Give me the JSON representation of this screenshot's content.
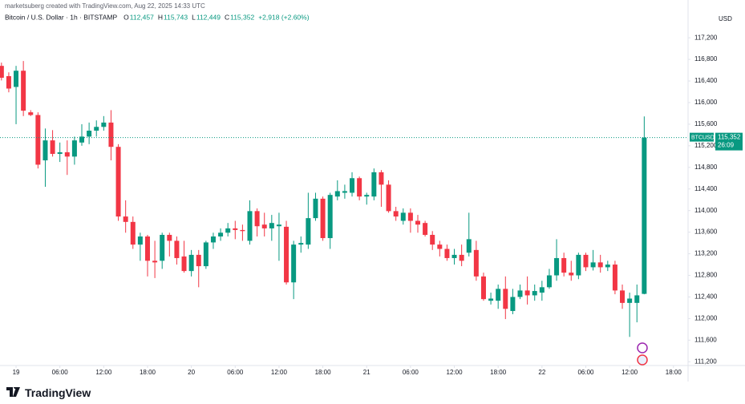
{
  "header": {
    "credit": "marketsuberg created with TradingView.com, Aug 22, 2025 14:33 UTC",
    "symbol": "Bitcoin / U.S. Dollar · 1h · BITSTAMP",
    "ohlc": [
      {
        "label": "O",
        "value": "112,457"
      },
      {
        "label": "H",
        "value": "115,743"
      },
      {
        "label": "L",
        "value": "112,449"
      },
      {
        "label": "C",
        "value": "115,352"
      }
    ],
    "change": "+2,918 (+2.60%)"
  },
  "chart_data": {
    "type": "candlestick",
    "currency": "USD",
    "up_color": "#089981",
    "down_color": "#f23645",
    "grid": false,
    "xlim": [
      -2.2,
      92
    ],
    "ylim": [
      111130,
      117900
    ],
    "xticks": [
      {
        "value": 0,
        "label": "19"
      },
      {
        "value": 6,
        "label": "06:00"
      },
      {
        "value": 12,
        "label": "12:00"
      },
      {
        "value": 18,
        "label": "18:00"
      },
      {
        "value": 24,
        "label": "20"
      },
      {
        "value": 30,
        "label": "06:00"
      },
      {
        "value": 36,
        "label": "12:00"
      },
      {
        "value": 42,
        "label": "18:00"
      },
      {
        "value": 48,
        "label": "21"
      },
      {
        "value": 54,
        "label": "06:00"
      },
      {
        "value": 60,
        "label": "12:00"
      },
      {
        "value": 66,
        "label": "18:00"
      },
      {
        "value": 72,
        "label": "22"
      },
      {
        "value": 78,
        "label": "06:00"
      },
      {
        "value": 84,
        "label": "12:00"
      },
      {
        "value": 90,
        "label": "18:00"
      }
    ],
    "yticks": [
      {
        "value": 111200,
        "label": "111,200"
      },
      {
        "value": 111600,
        "label": "111,600"
      },
      {
        "value": 112000,
        "label": "112,000"
      },
      {
        "value": 112400,
        "label": "112,400"
      },
      {
        "value": 112800,
        "label": "112,800"
      },
      {
        "value": 113200,
        "label": "113,200"
      },
      {
        "value": 113600,
        "label": "113,600"
      },
      {
        "value": 114000,
        "label": "114,000"
      },
      {
        "value": 114400,
        "label": "114,400"
      },
      {
        "value": 114800,
        "label": "114,800"
      },
      {
        "value": 115200,
        "label": "115,200"
      },
      {
        "value": 115600,
        "label": "115,600"
      },
      {
        "value": 116000,
        "label": "116,000"
      },
      {
        "value": 116400,
        "label": "116,400"
      },
      {
        "value": 116800,
        "label": "116,800"
      },
      {
        "value": 117200,
        "label": "117,200"
      }
    ],
    "x": [
      -2,
      -1,
      0,
      1,
      2,
      3,
      4,
      5,
      6,
      7,
      8,
      9,
      10,
      11,
      12,
      13,
      14,
      15,
      16,
      17,
      18,
      19,
      20,
      21,
      22,
      23,
      24,
      25,
      26,
      27,
      28,
      29,
      30,
      31,
      32,
      33,
      34,
      35,
      36,
      37,
      38,
      39,
      40,
      41,
      42,
      43,
      44,
      45,
      46,
      47,
      48,
      49,
      50,
      51,
      52,
      53,
      54,
      55,
      56,
      57,
      58,
      59,
      60,
      61,
      62,
      63,
      64,
      65,
      66,
      67,
      68,
      69,
      70,
      71,
      72,
      73,
      74,
      75,
      76,
      77,
      78,
      79,
      80,
      81,
      82,
      83,
      84,
      85,
      86
    ],
    "open": [
      116680,
      116490,
      116290,
      116590,
      115820,
      115770,
      114930,
      115300,
      115050,
      115080,
      115000,
      115260,
      115370,
      115480,
      115550,
      115630,
      115180,
      113890,
      113790,
      113370,
      113520,
      113070,
      113070,
      113550,
      113440,
      113150,
      112880,
      113180,
      112970,
      113410,
      113520,
      113590,
      113670,
      113640,
      113440,
      113990,
      113740,
      113670,
      113710,
      113700,
      112670,
      113370,
      113370,
      113860,
      114220,
      113490,
      114260,
      114330,
      114330,
      114600,
      114260,
      114260,
      114710,
      114480,
      113990,
      113810,
      113960,
      113810,
      113770,
      113550,
      113370,
      113290,
      113120,
      113180,
      113220,
      113270,
      112780,
      112330,
      112330,
      112550,
      112140,
      112400,
      112520,
      112430,
      112480,
      112580,
      112800,
      113120,
      112850,
      112800,
      113180,
      112950,
      113040,
      112950,
      113000,
      112520,
      112290,
      112290,
      112457
    ],
    "high": [
      116740,
      116560,
      116680,
      116770,
      115860,
      115820,
      115520,
      115490,
      115260,
      115300,
      115370,
      115600,
      115630,
      115670,
      115750,
      115860,
      115230,
      114190,
      113890,
      113590,
      113550,
      113440,
      113590,
      113590,
      113520,
      113440,
      113270,
      113270,
      113440,
      113590,
      113670,
      113770,
      113810,
      113740,
      114190,
      114040,
      113960,
      113920,
      113960,
      113810,
      113440,
      113520,
      114330,
      114330,
      114260,
      114330,
      114560,
      114480,
      114710,
      114630,
      114330,
      114780,
      114750,
      114560,
      114070,
      114040,
      114040,
      113920,
      113810,
      113620,
      113440,
      113370,
      113290,
      113370,
      113960,
      113440,
      112850,
      112480,
      112630,
      112780,
      112550,
      112630,
      112780,
      112630,
      112700,
      112920,
      113470,
      113220,
      113070,
      113220,
      113220,
      113270,
      113180,
      113070,
      113070,
      112630,
      112480,
      112630,
      115743
    ],
    "low": [
      116410,
      116190,
      115600,
      115750,
      115750,
      114780,
      114440,
      115000,
      114900,
      114660,
      114850,
      115200,
      115230,
      115370,
      115480,
      114930,
      113810,
      113590,
      113290,
      113070,
      112780,
      112750,
      112920,
      113150,
      113000,
      112850,
      112780,
      112580,
      112920,
      113290,
      113440,
      113520,
      113470,
      113440,
      113370,
      113520,
      113520,
      113440,
      113070,
      112630,
      112360,
      113220,
      113290,
      113810,
      113440,
      113290,
      114190,
      114220,
      114260,
      114190,
      114110,
      114190,
      114070,
      113960,
      113810,
      113740,
      113590,
      113590,
      113520,
      113270,
      113150,
      113070,
      113000,
      112970,
      113150,
      112700,
      112330,
      112260,
      112180,
      111990,
      112080,
      112360,
      112260,
      112330,
      112330,
      112550,
      112700,
      112780,
      112700,
      112730,
      112880,
      112890,
      112850,
      112880,
      112450,
      112180,
      111660,
      111930,
      112449
    ],
    "close": [
      116460,
      116260,
      116590,
      115850,
      115770,
      114850,
      115300,
      115050,
      115080,
      115000,
      115300,
      115370,
      115480,
      115550,
      115630,
      115180,
      113890,
      113790,
      113370,
      113520,
      113070,
      113040,
      113550,
      113440,
      113120,
      112880,
      113180,
      112970,
      113410,
      113520,
      113590,
      113670,
      113640,
      113620,
      113990,
      113710,
      113670,
      113770,
      113740,
      112670,
      113370,
      113400,
      113860,
      114220,
      113490,
      114290,
      114360,
      114360,
      114600,
      114260,
      114290,
      114710,
      114480,
      113990,
      113890,
      113960,
      113810,
      113740,
      113550,
      113370,
      113290,
      113120,
      113180,
      113070,
      113470,
      112780,
      112360,
      112370,
      112550,
      112180,
      112400,
      112520,
      112430,
      112510,
      112580,
      112800,
      113120,
      112850,
      112800,
      113180,
      112950,
      113040,
      112950,
      113000,
      112520,
      112290,
      112370,
      112430,
      115352
    ],
    "last_price": {
      "symbol": "BTCUSD",
      "label": "115,352",
      "countdown": "26:09"
    }
  },
  "footer": {
    "brand": "TradingView"
  }
}
